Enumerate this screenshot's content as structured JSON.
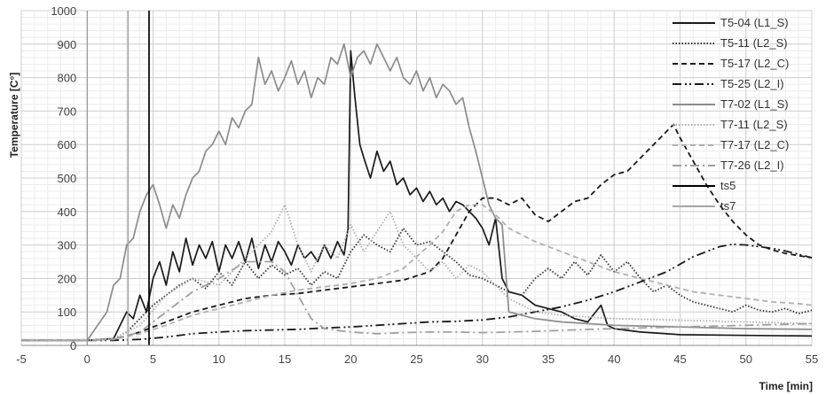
{
  "chart_data": {
    "type": "line",
    "title": "",
    "xlabel": "Time [min]",
    "ylabel": "Temperature [C°]",
    "xlim": [
      -5,
      55
    ],
    "ylim": [
      0,
      1000
    ],
    "x_ticks": [
      -5,
      0,
      5,
      10,
      15,
      20,
      25,
      30,
      35,
      40,
      45,
      50,
      55
    ],
    "y_ticks": [
      0,
      100,
      200,
      300,
      400,
      500,
      600,
      700,
      800,
      900,
      1000
    ],
    "grid": true,
    "minor_grid": true,
    "legend_position": "top-right",
    "series": [
      {
        "name": "T5-04 (L1_S)",
        "color": "#1a1a1a",
        "dash": "solid",
        "x": [
          -5,
          0,
          2,
          2.5,
          3,
          3.5,
          4,
          4.5,
          5,
          5.5,
          6,
          6.5,
          7,
          7.5,
          8,
          8.5,
          9,
          9.5,
          10,
          10.5,
          11,
          11.5,
          12,
          12.5,
          13,
          13.5,
          14,
          14.5,
          15,
          15.5,
          16,
          16.5,
          17,
          17.5,
          18,
          18.5,
          19,
          19.5,
          19.8,
          20,
          20.3,
          20.7,
          21,
          21.5,
          22,
          22.5,
          23,
          23.5,
          24,
          24.5,
          25,
          25.5,
          26,
          26.5,
          27,
          27.5,
          28,
          28.5,
          29,
          29.5,
          30,
          30.5,
          31,
          31.5,
          32,
          33,
          34,
          35,
          36,
          37,
          38,
          39,
          39.5,
          40,
          42,
          45,
          50,
          55
        ],
        "y": [
          15,
          15,
          20,
          60,
          100,
          80,
          150,
          100,
          200,
          250,
          180,
          280,
          220,
          320,
          240,
          300,
          260,
          310,
          220,
          300,
          260,
          310,
          250,
          320,
          230,
          300,
          250,
          310,
          280,
          240,
          300,
          260,
          280,
          250,
          300,
          260,
          310,
          270,
          350,
          880,
          750,
          600,
          560,
          500,
          580,
          520,
          550,
          480,
          500,
          450,
          470,
          430,
          460,
          420,
          440,
          400,
          430,
          420,
          400,
          380,
          350,
          300,
          380,
          200,
          160,
          150,
          120,
          110,
          100,
          80,
          70,
          120,
          60,
          50,
          40,
          32,
          30,
          28
        ]
      },
      {
        "name": "T5-11 (L2_S)",
        "color": "#333333",
        "dash": "dotted",
        "x": [
          -5,
          0,
          2,
          3,
          4,
          5,
          6,
          7,
          8,
          9,
          10,
          11,
          12,
          13,
          14,
          15,
          16,
          17,
          18,
          19,
          20,
          21,
          22,
          23,
          24,
          25,
          26,
          27,
          28,
          29,
          30,
          31,
          32,
          33,
          34,
          35,
          36,
          37,
          38,
          39,
          40,
          41,
          42,
          43,
          44,
          45,
          46,
          47,
          48,
          49,
          50,
          51,
          52,
          53,
          54,
          55
        ],
        "y": [
          15,
          15,
          20,
          40,
          80,
          120,
          150,
          180,
          200,
          170,
          220,
          180,
          250,
          200,
          240,
          210,
          230,
          180,
          220,
          200,
          280,
          330,
          300,
          280,
          350,
          300,
          310,
          280,
          250,
          210,
          200,
          180,
          160,
          150,
          200,
          230,
          200,
          250,
          210,
          270,
          220,
          250,
          200,
          160,
          180,
          150,
          130,
          120,
          110,
          100,
          120,
          105,
          100,
          110,
          95,
          105
        ]
      },
      {
        "name": "T5-17 (L2_C)",
        "color": "#1a1a1a",
        "dash": "dashed",
        "x": [
          -5,
          0,
          2,
          4,
          6,
          8,
          10,
          12,
          14,
          16,
          18,
          20,
          22,
          24,
          26,
          27,
          28,
          29,
          30,
          31,
          32,
          33,
          34,
          35,
          36,
          37,
          38,
          39,
          40,
          41,
          42,
          43,
          44,
          44.5,
          45,
          46,
          47,
          48,
          49,
          50,
          51,
          52,
          53,
          54,
          55
        ],
        "y": [
          15,
          15,
          18,
          40,
          70,
          100,
          120,
          140,
          150,
          155,
          165,
          175,
          185,
          195,
          220,
          260,
          330,
          400,
          440,
          440,
          420,
          440,
          390,
          370,
          400,
          430,
          440,
          480,
          510,
          520,
          560,
          600,
          640,
          660,
          620,
          550,
          480,
          420,
          370,
          330,
          300,
          285,
          275,
          268,
          262
        ]
      },
      {
        "name": "T5-25 (L2_I)",
        "color": "#1a1a1a",
        "dash": "dashdotdot",
        "x": [
          -5,
          0,
          2,
          4,
          6,
          8,
          10,
          12,
          14,
          16,
          18,
          20,
          22,
          24,
          26,
          28,
          30,
          32,
          34,
          36,
          38,
          40,
          42,
          44,
          46,
          48,
          49,
          50,
          51,
          52,
          53,
          54,
          55
        ],
        "y": [
          15,
          15,
          15,
          18,
          25,
          35,
          40,
          44,
          46,
          48,
          52,
          55,
          60,
          65,
          70,
          72,
          76,
          85,
          100,
          115,
          135,
          160,
          190,
          220,
          265,
          295,
          302,
          300,
          295,
          290,
          282,
          272,
          262
        ]
      },
      {
        "name": "T7-02 (L1_S)",
        "color": "#8c8c8c",
        "dash": "solid",
        "x": [
          -5,
          0,
          1.5,
          2,
          2.5,
          3,
          3.5,
          4,
          4.5,
          5,
          5.5,
          6,
          6.5,
          7,
          7.5,
          8,
          8.5,
          9,
          9.5,
          10,
          10.5,
          11,
          11.5,
          12,
          12.5,
          13,
          13.5,
          14,
          14.5,
          15,
          15.5,
          16,
          16.5,
          17,
          17.5,
          18,
          18.5,
          19,
          19.5,
          20,
          20.5,
          21,
          21.5,
          22,
          22.5,
          23,
          23.5,
          24,
          24.5,
          25,
          25.5,
          26,
          26.5,
          27,
          27.5,
          28,
          28.5,
          29,
          29.5,
          30,
          30.5,
          31,
          31.5,
          32,
          34,
          36,
          38,
          40,
          45,
          50,
          55
        ],
        "y": [
          15,
          15,
          100,
          180,
          200,
          300,
          320,
          400,
          450,
          480,
          420,
          350,
          420,
          380,
          450,
          500,
          520,
          580,
          600,
          640,
          600,
          680,
          650,
          700,
          720,
          860,
          780,
          820,
          760,
          800,
          850,
          780,
          820,
          740,
          800,
          780,
          860,
          840,
          900,
          800,
          860,
          880,
          840,
          900,
          860,
          820,
          860,
          800,
          780,
          820,
          760,
          800,
          740,
          780,
          760,
          720,
          740,
          650,
          580,
          500,
          420,
          380,
          360,
          100,
          80,
          70,
          65,
          60,
          55,
          50,
          48
        ]
      },
      {
        "name": "T7-11 (L2_S)",
        "color": "#b0b0b0",
        "dash": "dotted",
        "x": [
          -5,
          0,
          2,
          4,
          6,
          8,
          10,
          12,
          13,
          14,
          15,
          16,
          17,
          18,
          19,
          20,
          21,
          22,
          23,
          24,
          25,
          26,
          27,
          28,
          29,
          30,
          31,
          32,
          33,
          34,
          36,
          38,
          40,
          45,
          50,
          55
        ],
        "y": [
          15,
          15,
          20,
          60,
          150,
          200,
          180,
          260,
          300,
          340,
          420,
          300,
          220,
          300,
          260,
          360,
          280,
          340,
          400,
          300,
          260,
          220,
          250,
          200,
          240,
          220,
          180,
          140,
          120,
          100,
          90,
          85,
          80,
          75,
          70,
          65
        ]
      },
      {
        "name": "T7-17 (L2_C)",
        "color": "#b0b0b0",
        "dash": "dashed",
        "x": [
          -5,
          0,
          2,
          4,
          6,
          8,
          10,
          12,
          14,
          16,
          18,
          20,
          22,
          24,
          26,
          27,
          28,
          29,
          30,
          31,
          32,
          34,
          36,
          38,
          40,
          42,
          44,
          46,
          48,
          50,
          52,
          54,
          55
        ],
        "y": [
          15,
          15,
          18,
          35,
          60,
          90,
          110,
          130,
          150,
          165,
          175,
          185,
          200,
          230,
          300,
          340,
          400,
          420,
          420,
          390,
          350,
          310,
          280,
          250,
          220,
          200,
          180,
          160,
          150,
          140,
          130,
          125,
          120
        ]
      },
      {
        "name": "T7-26 (L2_I)",
        "color": "#a0a0a0",
        "dash": "dashdot",
        "x": [
          -5,
          0,
          2,
          4,
          6,
          8,
          10,
          12,
          14,
          15,
          16,
          17,
          18,
          20,
          22,
          24,
          26,
          28,
          30,
          32,
          34,
          36,
          38,
          40,
          45,
          50,
          55
        ],
        "y": [
          15,
          15,
          18,
          40,
          100,
          160,
          200,
          250,
          250,
          220,
          150,
          80,
          50,
          40,
          35,
          38,
          40,
          40,
          38,
          40,
          42,
          45,
          48,
          50,
          55,
          60,
          65
        ]
      },
      {
        "name": "ts5",
        "color": "#000000",
        "dash": "solid",
        "x": [
          4.7,
          4.7
        ],
        "y": [
          0,
          1000
        ]
      },
      {
        "name": "ts7",
        "color": "#a8a8a8",
        "dash": "solid",
        "x": [
          3.1,
          3.1
        ],
        "y": [
          0,
          1000
        ]
      }
    ]
  }
}
